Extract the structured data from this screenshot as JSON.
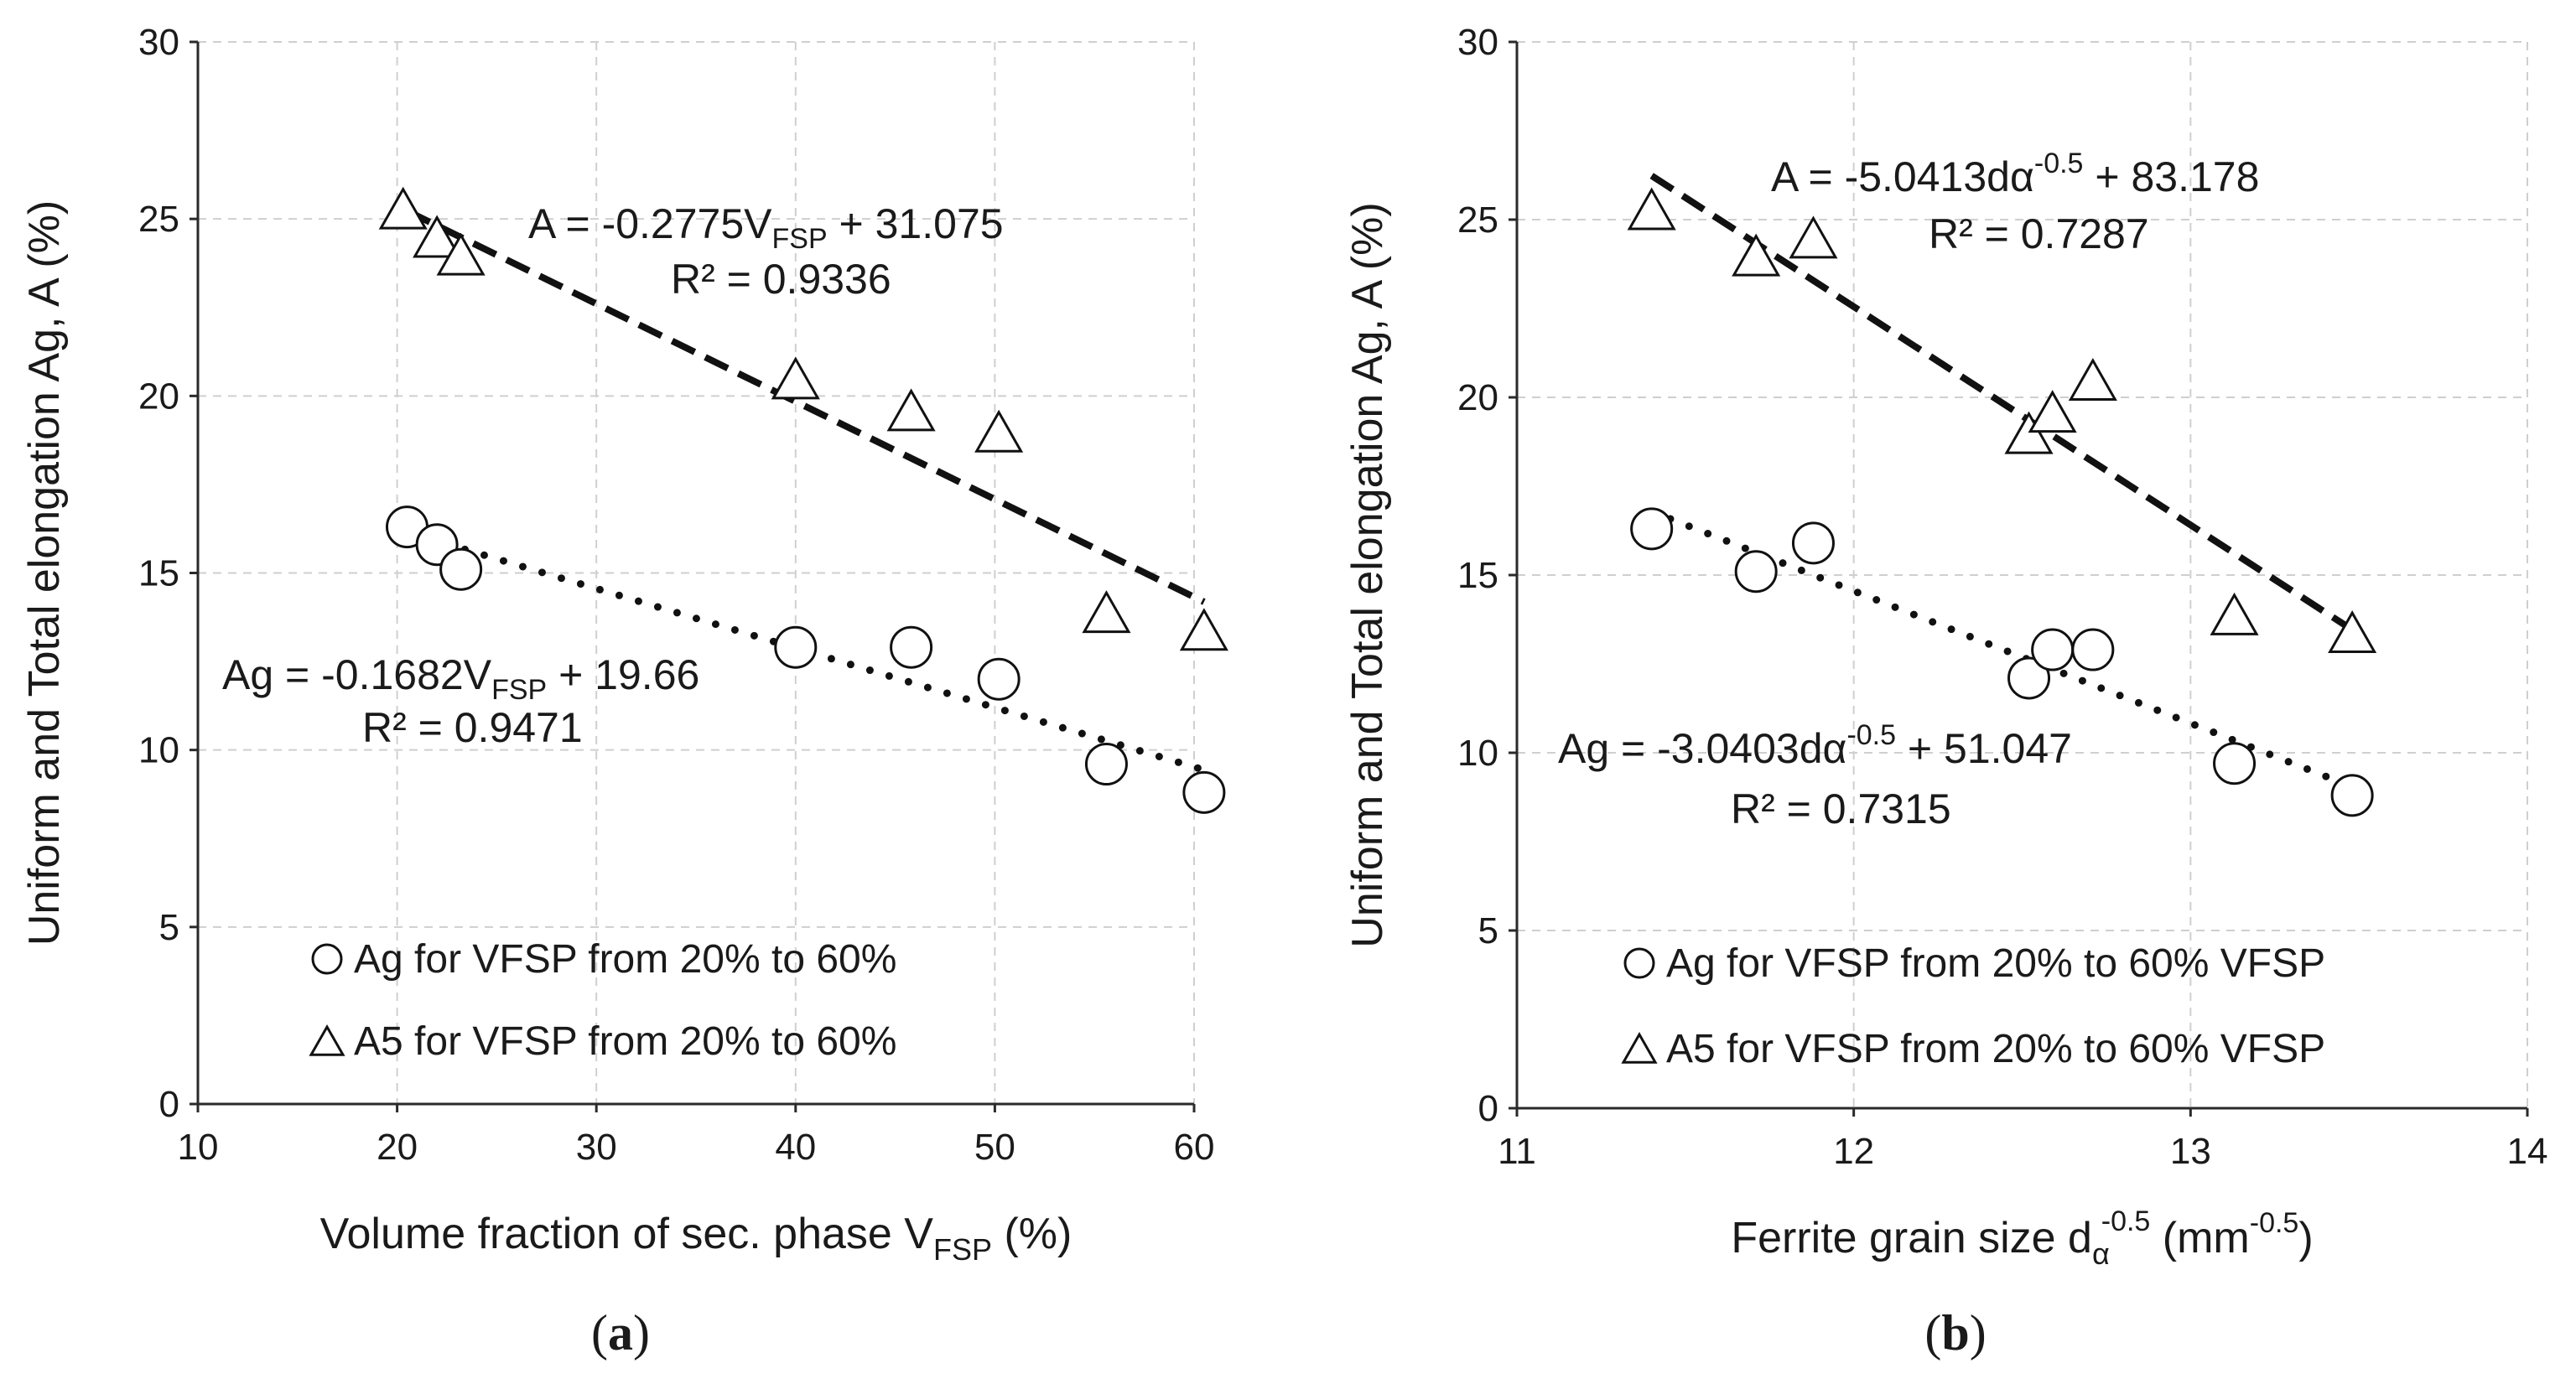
{
  "chart_data": [
    {
      "type": "scatter",
      "panel_label": "a",
      "xlabel": "Volume fraction of sec. phase V",
      "xlabel_sub": "FSP",
      "xlabel_unit": "(%)",
      "ylabel": "Uniform and Total elongation Ag, A  (%)",
      "xlim": [
        10,
        60
      ],
      "ylim": [
        0,
        30
      ],
      "x_ticks": [
        "10",
        "20",
        "30",
        "40",
        "50",
        "60"
      ],
      "y_ticks": [
        "0",
        "5",
        "10",
        "15",
        "20",
        "25",
        "30"
      ],
      "grid": true,
      "legend_position": "bottom-left",
      "series": [
        {
          "name": "Ag for VFSP from 20% to 60%",
          "marker": "circle",
          "points": [
            [
              20.5,
              16.3
            ],
            [
              22.0,
              15.8
            ],
            [
              23.2,
              15.1
            ],
            [
              40.0,
              12.9
            ],
            [
              45.8,
              12.9
            ],
            [
              50.2,
              12.0
            ],
            [
              55.6,
              9.6
            ],
            [
              60.5,
              8.8
            ]
          ],
          "trendline": {
            "style": "dotted",
            "x_range": [
              20.5,
              60.5
            ],
            "equation": {
              "lhs": "Ag = -0.1682V",
              "sub": "FSP",
              "rhs": " + 19.66"
            },
            "r2": "R² = 0.9471"
          }
        },
        {
          "name": "A5 for VFSP from 20% to 60%",
          "marker": "triangle",
          "points": [
            [
              20.3,
              25.2
            ],
            [
              22.0,
              24.4
            ],
            [
              23.2,
              23.9
            ],
            [
              40.0,
              20.4
            ],
            [
              45.8,
              19.5
            ],
            [
              50.2,
              18.9
            ],
            [
              55.6,
              13.8
            ],
            [
              60.5,
              13.3
            ]
          ],
          "trendline": {
            "style": "dashed",
            "x_range": [
              20.5,
              60.5
            ],
            "equation": {
              "lhs": "A = -0.2775V",
              "sub": "FSP",
              "rhs": " + 31.075"
            },
            "r2": "R² = 0.9336"
          }
        }
      ]
    },
    {
      "type": "scatter",
      "panel_label": "b",
      "xlabel": "Ferrite grain size d",
      "xlabel_sub": "α",
      "xlabel_sup": "-0.5",
      "xlabel_unit": " (mm",
      "xlabel_unit_sup": "-0.5",
      "xlabel_unit_close": ")",
      "ylabel": "Uniform and Total elongation Ag, A  (%)",
      "xlim": [
        11,
        14
      ],
      "ylim": [
        0,
        30
      ],
      "x_ticks": [
        "11",
        "12",
        "13",
        "14"
      ],
      "y_ticks": [
        "0",
        "5",
        "10",
        "15",
        "20",
        "25",
        "30"
      ],
      "grid": true,
      "legend_position": "bottom-left",
      "series": [
        {
          "name": "Ag for VFSP from 20% to 60% VFSP",
          "marker": "circle",
          "points": [
            [
              11.4,
              16.3
            ],
            [
              11.71,
              15.1
            ],
            [
              11.88,
              15.9
            ],
            [
              12.52,
              12.1
            ],
            [
              12.59,
              12.9
            ],
            [
              12.71,
              12.9
            ],
            [
              13.13,
              9.7
            ],
            [
              13.48,
              8.8
            ]
          ],
          "trendline": {
            "style": "dotted",
            "x_range": [
              11.4,
              13.48
            ],
            "equation": {
              "lhs": "Ag = -3.0403dα",
              "sup": "-0.5",
              "rhs": " + 51.047"
            },
            "r2": "R² = 0.7315"
          }
        },
        {
          "name": "A5 for VFSP from 20% to 60% VFSP",
          "marker": "triangle",
          "points": [
            [
              11.4,
              25.2
            ],
            [
              11.71,
              23.9
            ],
            [
              11.88,
              24.4
            ],
            [
              12.52,
              18.9
            ],
            [
              12.59,
              19.5
            ],
            [
              12.71,
              20.4
            ],
            [
              13.13,
              13.8
            ],
            [
              13.48,
              13.3
            ]
          ],
          "trendline": {
            "style": "dashed",
            "x_range": [
              11.4,
              13.48
            ],
            "equation": {
              "lhs": "A = -5.0413dα",
              "sup": "-0.5",
              "rhs": " + 83.178"
            },
            "r2": "R² = 0.7287"
          }
        }
      ]
    }
  ]
}
